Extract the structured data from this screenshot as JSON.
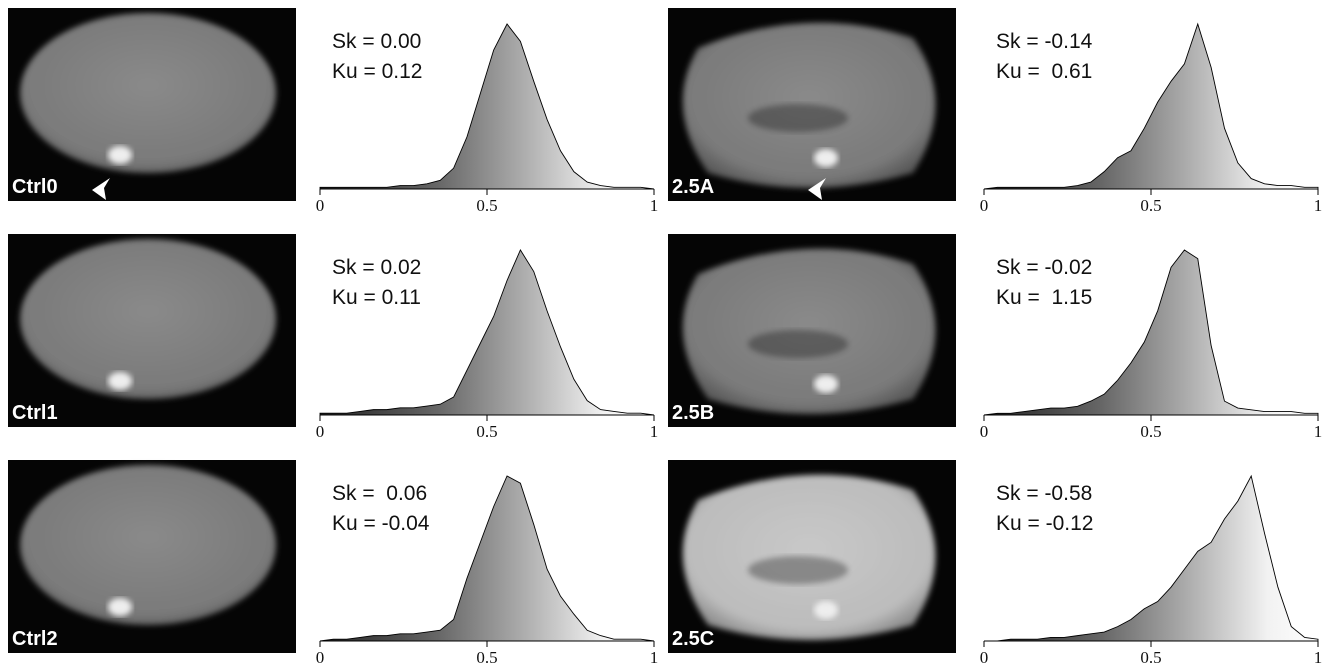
{
  "chart_data": [
    {
      "type": "area",
      "label": "Ctrl0",
      "annotations": [
        "Sk = 0.00",
        "Ku = 0.12"
      ],
      "xlim": [
        0,
        1
      ],
      "xticks": [
        0,
        0.5,
        1
      ],
      "x": [
        0,
        0.04,
        0.08,
        0.12,
        0.16,
        0.2,
        0.24,
        0.28,
        0.32,
        0.36,
        0.4,
        0.44,
        0.48,
        0.52,
        0.56,
        0.6,
        0.64,
        0.68,
        0.72,
        0.76,
        0.8,
        0.84,
        0.88,
        0.92,
        0.96,
        1
      ],
      "values": [
        1,
        1,
        1,
        1,
        1,
        1,
        2,
        2,
        3,
        5,
        12,
        30,
        55,
        80,
        95,
        85,
        62,
        40,
        22,
        10,
        4,
        2,
        1,
        1,
        1,
        0
      ]
    },
    {
      "type": "area",
      "label": "Ctrl1",
      "annotations": [
        "Sk = 0.02",
        "Ku = 0.11"
      ],
      "xlim": [
        0,
        1
      ],
      "xticks": [
        0,
        0.5,
        1
      ],
      "x": [
        0,
        0.04,
        0.08,
        0.12,
        0.16,
        0.2,
        0.24,
        0.28,
        0.32,
        0.36,
        0.4,
        0.44,
        0.48,
        0.52,
        0.56,
        0.6,
        0.64,
        0.68,
        0.72,
        0.76,
        0.8,
        0.84,
        0.88,
        0.92,
        0.96,
        1
      ],
      "values": [
        1,
        1,
        1,
        2,
        3,
        3,
        4,
        4,
        5,
        6,
        10,
        25,
        40,
        55,
        75,
        92,
        80,
        58,
        38,
        20,
        8,
        3,
        2,
        1,
        1,
        0
      ]
    },
    {
      "type": "area",
      "label": "Ctrl2",
      "annotations": [
        "Sk =  0.06",
        "Ku = -0.04"
      ],
      "xlim": [
        0,
        1
      ],
      "xticks": [
        0,
        0.5,
        1
      ],
      "x": [
        0,
        0.04,
        0.08,
        0.12,
        0.16,
        0.2,
        0.24,
        0.28,
        0.32,
        0.36,
        0.4,
        0.44,
        0.48,
        0.52,
        0.56,
        0.6,
        0.64,
        0.68,
        0.72,
        0.76,
        0.8,
        0.84,
        0.88,
        0.92,
        0.96,
        1
      ],
      "values": [
        0,
        1,
        1,
        2,
        3,
        3,
        4,
        4,
        5,
        6,
        12,
        35,
        55,
        75,
        92,
        88,
        65,
        40,
        25,
        15,
        6,
        3,
        1,
        1,
        1,
        0
      ]
    },
    {
      "type": "area",
      "label": "2.5A",
      "annotations": [
        "Sk = -0.14",
        "Ku =  0.61"
      ],
      "xlim": [
        0,
        1
      ],
      "xticks": [
        0,
        0.5,
        1
      ],
      "x": [
        0,
        0.04,
        0.08,
        0.12,
        0.16,
        0.2,
        0.24,
        0.28,
        0.32,
        0.36,
        0.4,
        0.44,
        0.48,
        0.52,
        0.56,
        0.6,
        0.64,
        0.68,
        0.72,
        0.76,
        0.8,
        0.84,
        0.88,
        0.92,
        0.96,
        1
      ],
      "values": [
        0,
        1,
        1,
        1,
        1,
        1,
        1,
        2,
        4,
        10,
        18,
        22,
        35,
        50,
        62,
        72,
        95,
        70,
        35,
        15,
        6,
        3,
        2,
        2,
        1,
        1
      ]
    },
    {
      "type": "area",
      "label": "2.5B",
      "annotations": [
        "Sk = -0.02",
        "Ku =  1.15"
      ],
      "xlim": [
        0,
        1
      ],
      "xticks": [
        0,
        0.5,
        1
      ],
      "x": [
        0,
        0.04,
        0.08,
        0.12,
        0.16,
        0.2,
        0.24,
        0.28,
        0.32,
        0.36,
        0.4,
        0.44,
        0.48,
        0.52,
        0.56,
        0.6,
        0.64,
        0.68,
        0.72,
        0.76,
        0.8,
        0.84,
        0.88,
        0.92,
        0.96,
        1
      ],
      "values": [
        0,
        1,
        1,
        2,
        3,
        4,
        4,
        5,
        8,
        12,
        20,
        30,
        42,
        60,
        85,
        95,
        90,
        40,
        8,
        4,
        3,
        2,
        2,
        2,
        1,
        1
      ]
    },
    {
      "type": "area",
      "label": "2.5C",
      "annotations": [
        "Sk = -0.58",
        "Ku = -0.12"
      ],
      "xlim": [
        0,
        1
      ],
      "xticks": [
        0,
        0.5,
        1
      ],
      "x": [
        0,
        0.04,
        0.08,
        0.12,
        0.16,
        0.2,
        0.24,
        0.28,
        0.32,
        0.36,
        0.4,
        0.44,
        0.48,
        0.52,
        0.56,
        0.6,
        0.64,
        0.68,
        0.72,
        0.76,
        0.8,
        0.84,
        0.88,
        0.92,
        0.96,
        1
      ],
      "values": [
        0,
        0,
        1,
        1,
        1,
        2,
        2,
        3,
        4,
        5,
        8,
        12,
        18,
        22,
        30,
        40,
        50,
        55,
        68,
        78,
        92,
        60,
        30,
        8,
        2,
        1
      ]
    }
  ]
}
